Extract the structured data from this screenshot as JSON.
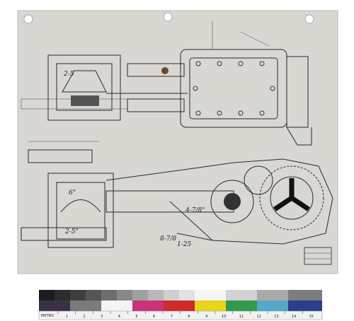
{
  "drawing": {
    "dimension_labels": [
      "2-5",
      "6\"",
      "2-5\"",
      "4-7/8\"",
      "1-25",
      "8-7/8"
    ]
  },
  "scale_bar": {
    "unit_label": "METRIC",
    "numbers": [
      "1",
      "2",
      "3",
      "4",
      "5",
      "6",
      "7",
      "8",
      "9",
      "10",
      "11",
      "12",
      "13",
      "14",
      "15"
    ]
  }
}
